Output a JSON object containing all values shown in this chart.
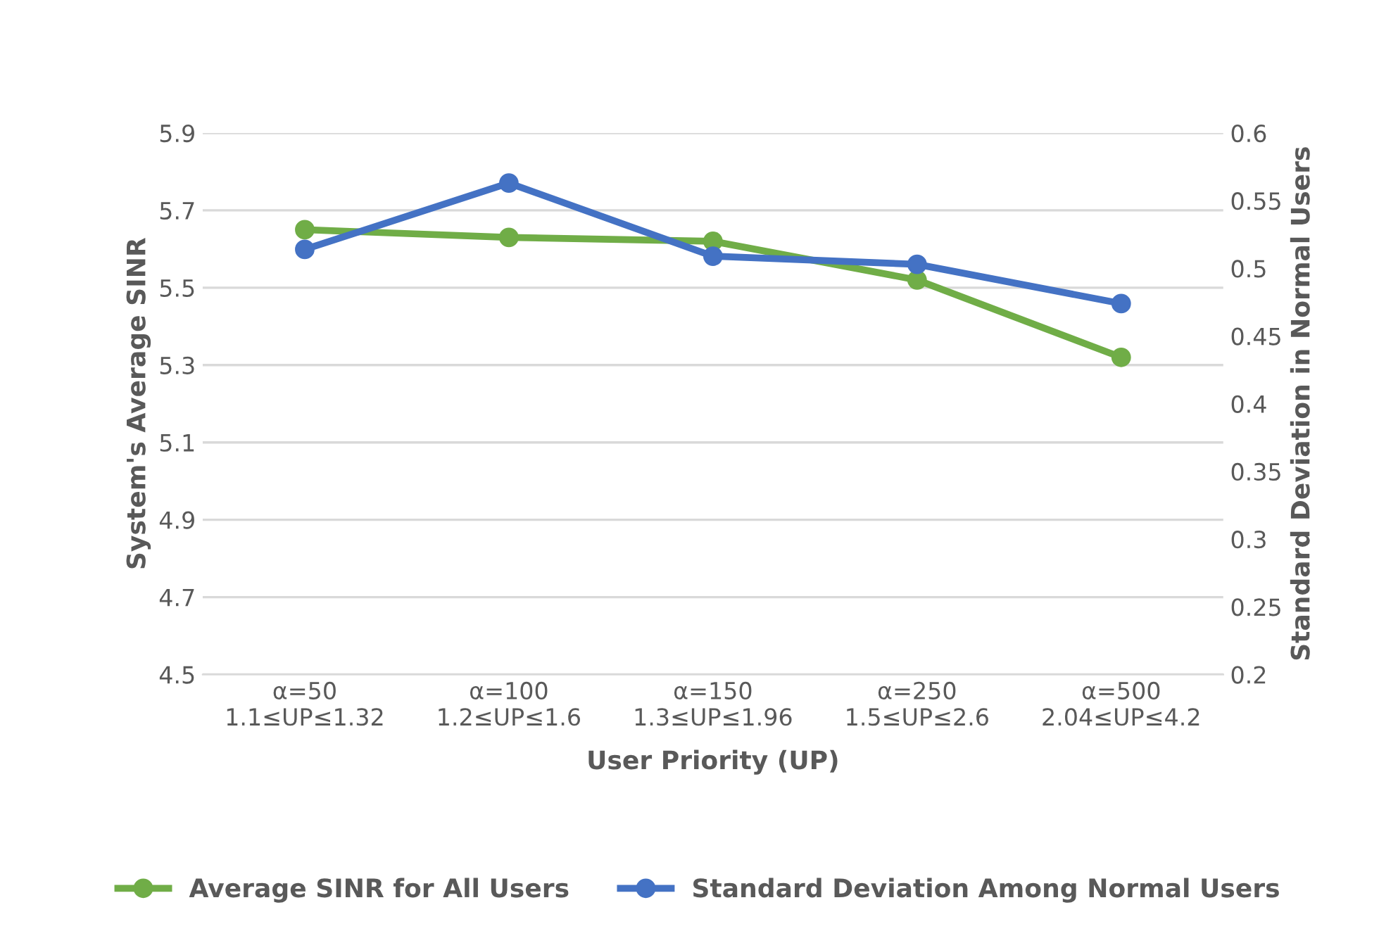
{
  "chart_data": {
    "type": "line",
    "categories": [
      "α=50\n1.1≤UP≤1.32",
      "α=100\n1.2≤UP≤1.6",
      "α=150\n1.3≤UP≤1.96",
      "α=250\n1.5≤UP≤2.6",
      "α=500\n2.04≤UP≤4.2"
    ],
    "series": [
      {
        "name": "Average SINR for All Users",
        "color": "#70ad47",
        "values": [
          5.65,
          5.63,
          5.62,
          5.52,
          5.32
        ]
      },
      {
        "name": "Standard Deviation Among Normal Users",
        "color": "#4472c4",
        "axis": "y2",
        "values": [
          0.514,
          0.563,
          0.509,
          0.503,
          0.474
        ]
      }
    ],
    "xlabel": "User Priority (UP)",
    "ylabel": "System's Average SINR",
    "y2label": "Standard Deviation in Normal Users",
    "ylim": [
      4.5,
      5.9
    ],
    "yticks": [
      4.5,
      4.7,
      4.9,
      5.1,
      5.3,
      5.5,
      5.7,
      5.9
    ],
    "y2lim": [
      0.2,
      0.6
    ],
    "y2ticks": [
      0.2,
      0.25,
      0.3,
      0.35,
      0.4,
      0.45,
      0.5,
      0.55,
      0.6
    ],
    "grid": "y",
    "legend": "bottom",
    "marker": "circle",
    "line_style": "solid"
  }
}
